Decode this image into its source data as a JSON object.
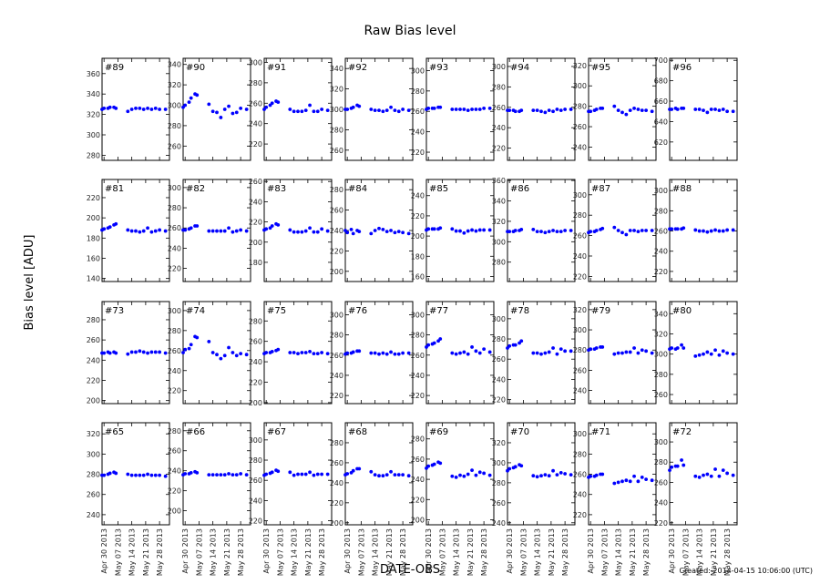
{
  "chart_data": {
    "type": "scatter",
    "title": "Raw Bias level",
    "xlabel": "DATE-OBS",
    "ylabel": "Bias level [ADU]",
    "footer": "Created: 2014-04-15 10:06:00 (UTC)",
    "marker_color": "#0000ff",
    "grid": false,
    "xlim": [
      "2013-04-29",
      "2013-06-02"
    ],
    "xticks": [
      "2013-04-30",
      "2013-05-07",
      "2013-05-14",
      "2013-05-21",
      "2013-05-28"
    ],
    "xtick_labels": [
      "Apr 30 2013",
      "May 07 2013",
      "May 14 2013",
      "May 21 2013",
      "May 28 2013"
    ],
    "x": [
      "2013-04-29",
      "2013-04-30",
      "2013-05-02",
      "2013-05-03",
      "2013-05-05",
      "2013-05-06",
      "2013-05-12",
      "2013-05-14",
      "2013-05-16",
      "2013-05-18",
      "2013-05-20",
      "2013-05-22",
      "2013-05-24",
      "2013-05-26",
      "2013-05-28",
      "2013-05-31"
    ],
    "panels": [
      {
        "label": "#89",
        "ylim": [
          275,
          375
        ],
        "yticks": [
          280,
          300,
          320,
          340,
          360
        ],
        "values": [
          325,
          326,
          326,
          327,
          327,
          326,
          323,
          325,
          326,
          326,
          325,
          326,
          325,
          326,
          325,
          325
        ]
      },
      {
        "label": "#90",
        "ylim": [
          246,
          346
        ],
        "yticks": [
          260,
          280,
          300,
          320,
          340
        ],
        "values": [
          298,
          300,
          303,
          307,
          311,
          310,
          301,
          294,
          293,
          288,
          296,
          299,
          292,
          293,
          297,
          296
        ]
      },
      {
        "label": "#91",
        "ylim": [
          204,
          304
        ],
        "yticks": [
          220,
          240,
          260,
          280,
          300
        ],
        "values": [
          254,
          256,
          258,
          260,
          262,
          261,
          254,
          252,
          252,
          252,
          253,
          258,
          252,
          252,
          254,
          253
        ]
      },
      {
        "label": "#92",
        "ylim": [
          250,
          350
        ],
        "yticks": [
          260,
          280,
          300,
          320,
          340
        ],
        "values": [
          300,
          300,
          301,
          302,
          304,
          303,
          300,
          299,
          299,
          298,
          299,
          302,
          299,
          298,
          300,
          299
        ]
      },
      {
        "label": "#93",
        "ylim": [
          212,
          312
        ],
        "yticks": [
          220,
          240,
          260,
          280,
          300
        ],
        "values": [
          262,
          263,
          263,
          263,
          264,
          264,
          262,
          262,
          262,
          262,
          261,
          262,
          262,
          262,
          263,
          263
        ]
      },
      {
        "label": "#94",
        "ylim": [
          208,
          308
        ],
        "yticks": [
          220,
          240,
          260,
          280,
          300
        ],
        "values": [
          257,
          257,
          257,
          256,
          256,
          257,
          257,
          257,
          256,
          255,
          257,
          256,
          258,
          257,
          258,
          258
        ]
      },
      {
        "label": "#95",
        "ylim": [
          227,
          327
        ],
        "yticks": [
          240,
          260,
          280,
          300,
          320
        ],
        "values": [
          275,
          275,
          276,
          277,
          278,
          278,
          280,
          276,
          274,
          272,
          276,
          278,
          277,
          276,
          276,
          275
        ]
      },
      {
        "label": "#96",
        "ylim": [
          602,
          702
        ],
        "yticks": [
          620,
          640,
          660,
          680,
          700
        ],
        "values": [
          652,
          652,
          653,
          652,
          653,
          653,
          652,
          652,
          651,
          649,
          652,
          652,
          651,
          652,
          650,
          650
        ]
      },
      {
        "label": "#81",
        "ylim": [
          137,
          238
        ],
        "yticks": [
          140,
          160,
          180,
          200,
          220
        ],
        "values": [
          188,
          189,
          190,
          191,
          193,
          194,
          188,
          187,
          187,
          186,
          187,
          190,
          186,
          187,
          188,
          187
        ]
      },
      {
        "label": "#82",
        "ylim": [
          207,
          308
        ],
        "yticks": [
          220,
          240,
          260,
          280,
          300
        ],
        "values": [
          258,
          258,
          259,
          260,
          262,
          262,
          257,
          257,
          257,
          257,
          257,
          260,
          256,
          257,
          258,
          257
        ]
      },
      {
        "label": "#83",
        "ylim": [
          161,
          262
        ],
        "yticks": [
          180,
          200,
          220,
          240,
          260
        ],
        "values": [
          212,
          213,
          214,
          216,
          218,
          217,
          212,
          210,
          210,
          210,
          211,
          214,
          210,
          210,
          213,
          211
        ]
      },
      {
        "label": "#84",
        "ylim": [
          190,
          290
        ],
        "yticks": [
          200,
          220,
          240,
          260,
          280
        ],
        "values": [
          240,
          238,
          241,
          237,
          240,
          239,
          237,
          240,
          242,
          241,
          239,
          240,
          238,
          239,
          238,
          237
        ]
      },
      {
        "label": "#85",
        "ylim": [
          155,
          256
        ],
        "yticks": [
          160,
          180,
          200,
          220,
          240
        ],
        "values": [
          206,
          207,
          207,
          207,
          207,
          208,
          207,
          205,
          205,
          203,
          205,
          206,
          205,
          206,
          206,
          206
        ]
      },
      {
        "label": "#86",
        "ylim": [
          261,
          361
        ],
        "yticks": [
          280,
          300,
          320,
          340,
          360
        ],
        "values": [
          310,
          310,
          310,
          311,
          311,
          312,
          312,
          310,
          310,
          309,
          310,
          311,
          310,
          310,
          311,
          311
        ]
      },
      {
        "label": "#87",
        "ylim": [
          215,
          315
        ],
        "yticks": [
          220,
          240,
          260,
          280,
          300
        ],
        "values": [
          263,
          264,
          264,
          265,
          266,
          267,
          268,
          265,
          263,
          261,
          265,
          265,
          264,
          265,
          265,
          265
        ]
      },
      {
        "label": "#88",
        "ylim": [
          210,
          311
        ],
        "yticks": [
          220,
          240,
          260,
          280,
          300
        ],
        "values": [
          262,
          262,
          262,
          262,
          262,
          263,
          261,
          260,
          260,
          259,
          260,
          261,
          260,
          260,
          261,
          261
        ]
      },
      {
        "label": "#73",
        "ylim": [
          197,
          298
        ],
        "yticks": [
          200,
          220,
          240,
          260,
          280
        ],
        "values": [
          247,
          247,
          248,
          247,
          248,
          247,
          246,
          248,
          248,
          249,
          248,
          247,
          248,
          248,
          248,
          247
        ]
      },
      {
        "label": "#74",
        "ylim": [
          207,
          309
        ],
        "yticks": [
          220,
          240,
          260,
          280,
          300
        ],
        "values": [
          258,
          261,
          262,
          266,
          274,
          273,
          269,
          258,
          256,
          252,
          255,
          263,
          258,
          255,
          257,
          256
        ]
      },
      {
        "label": "#75",
        "ylim": [
          199,
          299
        ],
        "yticks": [
          200,
          220,
          240,
          260,
          280
        ],
        "values": [
          248,
          249,
          249,
          250,
          251,
          252,
          249,
          249,
          248,
          249,
          249,
          250,
          248,
          248,
          249,
          248
        ]
      },
      {
        "label": "#76",
        "ylim": [
          212,
          313
        ],
        "yticks": [
          220,
          240,
          260,
          280,
          300
        ],
        "values": [
          261,
          262,
          262,
          263,
          264,
          264,
          262,
          262,
          261,
          262,
          261,
          263,
          261,
          261,
          262,
          262
        ]
      },
      {
        "label": "#77",
        "ylim": [
          212,
          313
        ],
        "yticks": [
          220,
          240,
          260,
          280,
          300
        ],
        "values": [
          268,
          270,
          271,
          272,
          274,
          276,
          262,
          261,
          262,
          263,
          261,
          268,
          264,
          262,
          266,
          263
        ]
      },
      {
        "label": "#78",
        "ylim": [
          216,
          317
        ],
        "yticks": [
          220,
          240,
          260,
          280,
          300
        ],
        "values": [
          271,
          273,
          274,
          274,
          276,
          278,
          266,
          266,
          265,
          266,
          267,
          271,
          265,
          270,
          268,
          268
        ]
      },
      {
        "label": "#79",
        "ylim": [
          227,
          328
        ],
        "yticks": [
          240,
          260,
          280,
          300,
          320
        ],
        "values": [
          280,
          281,
          281,
          282,
          283,
          283,
          276,
          277,
          277,
          278,
          278,
          282,
          277,
          280,
          279,
          277
        ]
      },
      {
        "label": "#80",
        "ylim": [
          251,
          352
        ],
        "yticks": [
          260,
          280,
          300,
          320,
          340
        ],
        "values": [
          305,
          306,
          305,
          306,
          309,
          306,
          298,
          299,
          300,
          302,
          300,
          304,
          299,
          303,
          301,
          300
        ]
      },
      {
        "label": "#65",
        "ylim": [
          230,
          331
        ],
        "yticks": [
          240,
          260,
          280,
          300,
          320
        ],
        "values": [
          279,
          279,
          280,
          281,
          282,
          281,
          280,
          279,
          279,
          279,
          279,
          280,
          279,
          279,
          279,
          278
        ]
      },
      {
        "label": "#66",
        "ylim": [
          186,
          288
        ],
        "yticks": [
          200,
          220,
          240,
          260,
          280
        ],
        "values": [
          236,
          237,
          237,
          238,
          239,
          238,
          236,
          236,
          236,
          236,
          236,
          237,
          236,
          236,
          237,
          236
        ]
      },
      {
        "label": "#67",
        "ylim": [
          216,
          317
        ],
        "yticks": [
          220,
          240,
          260,
          280,
          300
        ],
        "values": [
          265,
          266,
          267,
          268,
          270,
          269,
          268,
          265,
          266,
          266,
          266,
          268,
          265,
          266,
          266,
          266
        ]
      },
      {
        "label": "#68",
        "ylim": [
          198,
          300
        ],
        "yticks": [
          200,
          220,
          240,
          260,
          280
        ],
        "values": [
          248,
          249,
          250,
          252,
          254,
          254,
          251,
          248,
          247,
          247,
          248,
          251,
          248,
          248,
          248,
          247
        ]
      },
      {
        "label": "#69",
        "ylim": [
          195,
          296
        ],
        "yticks": [
          200,
          220,
          240,
          260,
          280
        ],
        "values": [
          251,
          253,
          254,
          255,
          257,
          256,
          243,
          242,
          244,
          243,
          245,
          249,
          244,
          247,
          246,
          244
        ]
      },
      {
        "label": "#70",
        "ylim": [
          238,
          340
        ],
        "yticks": [
          240,
          260,
          280,
          300,
          320
        ],
        "values": [
          292,
          294,
          295,
          296,
          298,
          297,
          287,
          286,
          287,
          288,
          287,
          292,
          288,
          290,
          289,
          288
        ]
      },
      {
        "label": "#71",
        "ylim": [
          210,
          311
        ],
        "yticks": [
          220,
          240,
          260,
          280,
          300
        ],
        "values": [
          257,
          258,
          258,
          259,
          260,
          260,
          251,
          252,
          253,
          254,
          253,
          258,
          253,
          257,
          255,
          254
        ]
      },
      {
        "label": "#72",
        "ylim": [
          218,
          319
        ],
        "yticks": [
          220,
          240,
          260,
          280,
          300
        ],
        "values": [
          272,
          275,
          276,
          276,
          282,
          277,
          266,
          265,
          267,
          268,
          266,
          273,
          266,
          272,
          269,
          267
        ]
      }
    ]
  }
}
